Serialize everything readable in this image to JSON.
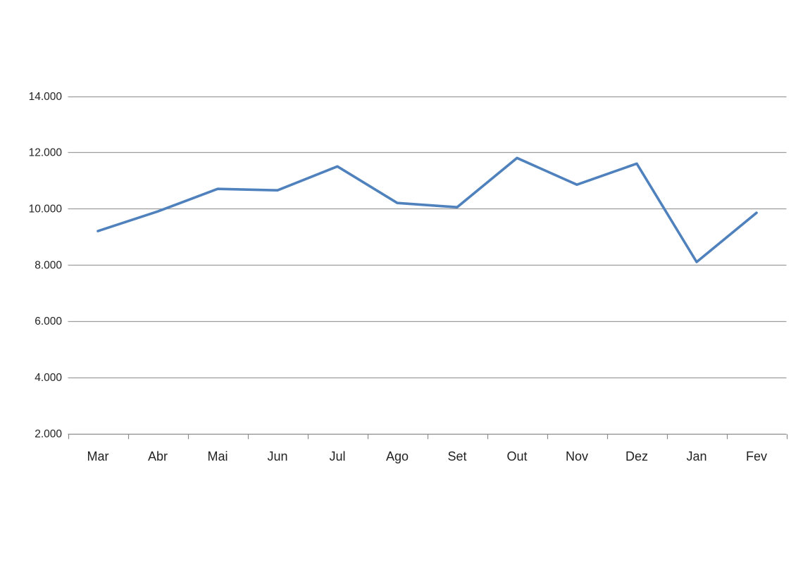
{
  "page": {
    "background": "#ffffff"
  },
  "chart_data": {
    "type": "line",
    "title": "",
    "categories": [
      "Mar",
      "Abr",
      "Mai",
      "Jun",
      "Jul",
      "Ago",
      "Set",
      "Out",
      "Nov",
      "Dez",
      "Jan",
      "Fev"
    ],
    "values": [
      9200,
      9900,
      10700,
      10650,
      11500,
      10200,
      10050,
      11800,
      10850,
      11600,
      8100,
      9850
    ],
    "xlabel": "",
    "ylabel": "",
    "ylim": [
      2000,
      14000
    ],
    "y_ticks": [
      2000,
      4000,
      6000,
      8000,
      10000,
      12000,
      14000
    ],
    "y_tick_labels": [
      "2.000",
      "4.000",
      "6.000",
      "8.000",
      "10.000",
      "12.000",
      "14.000"
    ],
    "grid": "horizontal",
    "legend": "none",
    "markers": "none",
    "line_color": "#4F81BD",
    "gridline_color": "#9d9d9d",
    "axis_color": "#8c8c8c",
    "label_color": "#222222"
  }
}
